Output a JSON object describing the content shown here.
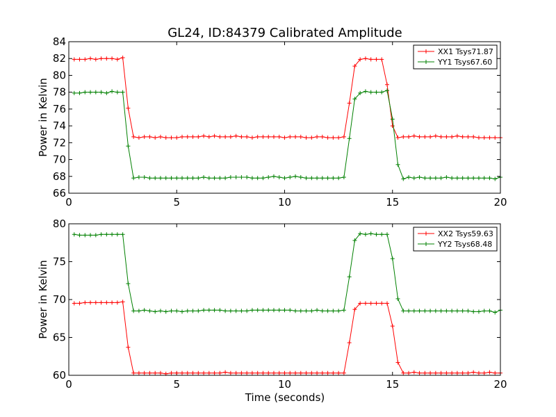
{
  "figure": {
    "title": "GL24, ID:84379 Calibrated Amplitude"
  },
  "chart_data": [
    {
      "type": "line",
      "ylabel": "Power in Kelvin",
      "xlabel": "",
      "xlim": [
        0,
        20
      ],
      "ylim": [
        66,
        84
      ],
      "xticks": [
        0,
        5,
        10,
        15,
        20
      ],
      "yticks": [
        66,
        68,
        70,
        72,
        74,
        76,
        78,
        80,
        82,
        84
      ],
      "legend_position": "top-right",
      "x": [
        0.25,
        0.5,
        0.75,
        1.0,
        1.25,
        1.5,
        1.75,
        2.0,
        2.25,
        2.5,
        2.75,
        3.0,
        3.25,
        3.5,
        3.75,
        4.0,
        4.25,
        4.5,
        4.75,
        5.0,
        5.25,
        5.5,
        5.75,
        6.0,
        6.25,
        6.5,
        6.75,
        7.0,
        7.25,
        7.5,
        7.75,
        8.0,
        8.25,
        8.5,
        8.75,
        9.0,
        9.25,
        9.5,
        9.75,
        10.0,
        10.25,
        10.5,
        10.75,
        11.0,
        11.25,
        11.5,
        11.75,
        12.0,
        12.25,
        12.5,
        12.75,
        13.0,
        13.25,
        13.5,
        13.75,
        14.0,
        14.25,
        14.5,
        14.75,
        15.0,
        15.25,
        15.5,
        15.75,
        16.0,
        16.25,
        16.5,
        16.75,
        17.0,
        17.25,
        17.5,
        17.75,
        18.0,
        18.25,
        18.5,
        18.75,
        19.0,
        19.25,
        19.5,
        19.75,
        20.0
      ],
      "series": [
        {
          "name": "XX1 Tsys71.87",
          "color": "#ff0000",
          "values": [
            81.9,
            81.9,
            81.9,
            82.0,
            81.9,
            82.0,
            82.0,
            82.0,
            81.9,
            82.1,
            76.1,
            72.7,
            72.6,
            72.7,
            72.7,
            72.6,
            72.7,
            72.6,
            72.6,
            72.6,
            72.7,
            72.7,
            72.7,
            72.7,
            72.8,
            72.7,
            72.8,
            72.7,
            72.7,
            72.7,
            72.8,
            72.7,
            72.7,
            72.6,
            72.7,
            72.7,
            72.7,
            72.7,
            72.7,
            72.6,
            72.7,
            72.7,
            72.7,
            72.6,
            72.6,
            72.7,
            72.7,
            72.6,
            72.6,
            72.6,
            72.7,
            76.7,
            81.1,
            81.9,
            82.0,
            81.9,
            81.9,
            81.9,
            78.9,
            74.0,
            72.6,
            72.7,
            72.7,
            72.8,
            72.7,
            72.7,
            72.7,
            72.8,
            72.7,
            72.7,
            72.7,
            72.8,
            72.7,
            72.7,
            72.7,
            72.6,
            72.6,
            72.6,
            72.6,
            72.6
          ]
        },
        {
          "name": "YY1 Tsys67.60",
          "color": "#008000",
          "values": [
            77.9,
            77.9,
            78.0,
            78.0,
            78.0,
            78.0,
            77.9,
            78.1,
            78.0,
            78.0,
            71.6,
            67.8,
            67.9,
            67.9,
            67.8,
            67.8,
            67.8,
            67.8,
            67.8,
            67.8,
            67.8,
            67.8,
            67.8,
            67.8,
            67.9,
            67.8,
            67.8,
            67.8,
            67.8,
            67.9,
            67.9,
            67.9,
            67.9,
            67.8,
            67.8,
            67.8,
            67.9,
            68.0,
            67.9,
            67.8,
            67.9,
            68.0,
            67.9,
            67.8,
            67.8,
            67.8,
            67.8,
            67.8,
            67.8,
            67.8,
            67.9,
            72.5,
            77.2,
            77.9,
            78.1,
            78.0,
            78.0,
            78.0,
            78.2,
            74.8,
            69.4,
            67.7,
            67.9,
            67.8,
            67.9,
            67.8,
            67.8,
            67.8,
            67.8,
            67.9,
            67.8,
            67.8,
            67.8,
            67.8,
            67.8,
            67.8,
            67.8,
            67.8,
            67.7,
            67.9
          ]
        }
      ]
    },
    {
      "type": "line",
      "ylabel": "Power in Kelvin",
      "xlabel": "Time (seconds)",
      "xlim": [
        0,
        20
      ],
      "ylim": [
        60,
        80
      ],
      "xticks": [
        0,
        5,
        10,
        15,
        20
      ],
      "yticks": [
        60,
        65,
        70,
        75,
        80
      ],
      "legend_position": "top-right",
      "x": [
        0.25,
        0.5,
        0.75,
        1.0,
        1.25,
        1.5,
        1.75,
        2.0,
        2.25,
        2.5,
        2.75,
        3.0,
        3.25,
        3.5,
        3.75,
        4.0,
        4.25,
        4.5,
        4.75,
        5.0,
        5.25,
        5.5,
        5.75,
        6.0,
        6.25,
        6.5,
        6.75,
        7.0,
        7.25,
        7.5,
        7.75,
        8.0,
        8.25,
        8.5,
        8.75,
        9.0,
        9.25,
        9.5,
        9.75,
        10.0,
        10.25,
        10.5,
        10.75,
        11.0,
        11.25,
        11.5,
        11.75,
        12.0,
        12.25,
        12.5,
        12.75,
        13.0,
        13.25,
        13.5,
        13.75,
        14.0,
        14.25,
        14.5,
        14.75,
        15.0,
        15.25,
        15.5,
        15.75,
        16.0,
        16.25,
        16.5,
        16.75,
        17.0,
        17.25,
        17.5,
        17.75,
        18.0,
        18.25,
        18.5,
        18.75,
        19.0,
        19.25,
        19.5,
        19.75,
        20.0
      ],
      "series": [
        {
          "name": "XX2 Tsys59.63",
          "color": "#ff0000",
          "values": [
            69.5,
            69.5,
            69.6,
            69.6,
            69.6,
            69.6,
            69.6,
            69.6,
            69.6,
            69.7,
            63.7,
            60.3,
            60.3,
            60.3,
            60.3,
            60.3,
            60.3,
            60.2,
            60.3,
            60.3,
            60.3,
            60.3,
            60.3,
            60.3,
            60.3,
            60.3,
            60.3,
            60.3,
            60.4,
            60.3,
            60.3,
            60.3,
            60.3,
            60.3,
            60.3,
            60.3,
            60.3,
            60.3,
            60.3,
            60.3,
            60.3,
            60.3,
            60.3,
            60.3,
            60.3,
            60.3,
            60.3,
            60.3,
            60.3,
            60.3,
            60.3,
            64.3,
            68.7,
            69.5,
            69.5,
            69.5,
            69.5,
            69.5,
            69.5,
            66.5,
            61.7,
            60.3,
            60.3,
            60.4,
            60.3,
            60.3,
            60.3,
            60.3,
            60.3,
            60.3,
            60.3,
            60.3,
            60.3,
            60.3,
            60.4,
            60.3,
            60.3,
            60.4,
            60.3,
            60.3
          ]
        },
        {
          "name": "YY2 Tsys68.48",
          "color": "#008000",
          "values": [
            78.6,
            78.5,
            78.5,
            78.5,
            78.5,
            78.6,
            78.6,
            78.6,
            78.6,
            78.6,
            72.1,
            68.5,
            68.5,
            68.6,
            68.5,
            68.4,
            68.5,
            68.4,
            68.5,
            68.5,
            68.4,
            68.5,
            68.5,
            68.5,
            68.6,
            68.6,
            68.6,
            68.6,
            68.5,
            68.5,
            68.5,
            68.5,
            68.5,
            68.6,
            68.6,
            68.6,
            68.6,
            68.6,
            68.6,
            68.6,
            68.6,
            68.5,
            68.5,
            68.5,
            68.5,
            68.6,
            68.5,
            68.5,
            68.5,
            68.5,
            68.6,
            73.0,
            77.8,
            78.7,
            78.6,
            78.7,
            78.6,
            78.6,
            78.6,
            75.4,
            70.1,
            68.5,
            68.5,
            68.5,
            68.5,
            68.5,
            68.5,
            68.5,
            68.5,
            68.5,
            68.5,
            68.5,
            68.5,
            68.5,
            68.4,
            68.4,
            68.5,
            68.5,
            68.3,
            68.6
          ]
        }
      ]
    }
  ]
}
